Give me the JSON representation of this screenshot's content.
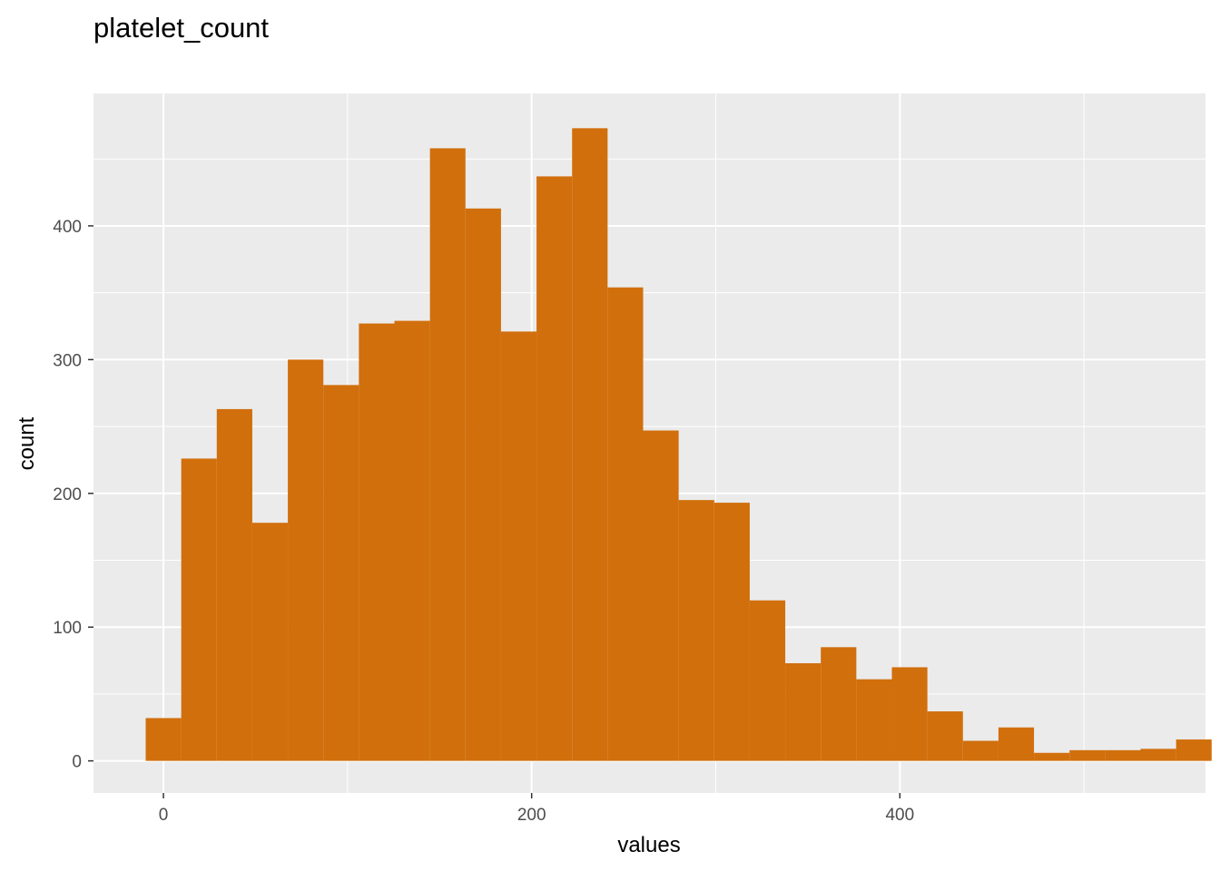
{
  "chart_data": {
    "type": "bar",
    "title": "platelet_count",
    "xlabel": "values",
    "ylabel": "count",
    "bin_width": 19.3,
    "bin_centers": [
      0,
      19.3,
      38.6,
      57.9,
      77.2,
      96.5,
      115.8,
      135.1,
      154.4,
      173.7,
      193.0,
      212.3,
      231.6,
      250.9,
      270.2,
      289.5,
      308.8,
      328.1,
      347.4,
      366.7,
      386.0,
      405.3,
      424.6,
      443.9,
      463.2,
      482.5,
      501.8,
      521.1,
      540.4,
      559.7
    ],
    "values": [
      32,
      226,
      263,
      178,
      300,
      281,
      327,
      329,
      458,
      413,
      321,
      437,
      473,
      354,
      247,
      195,
      193,
      120,
      73,
      85,
      61,
      70,
      37,
      15,
      25,
      6,
      8,
      8,
      9,
      16
    ],
    "xlim": [
      -38,
      566
    ],
    "ylim": [
      -24,
      499
    ],
    "x_ticks": [
      0,
      200,
      400
    ],
    "y_ticks": [
      0,
      100,
      200,
      300,
      400
    ],
    "grid": true,
    "colors": {
      "bar": "#D16F0C",
      "panel": "#EBEBEB",
      "grid": "#FFFFFF"
    }
  }
}
